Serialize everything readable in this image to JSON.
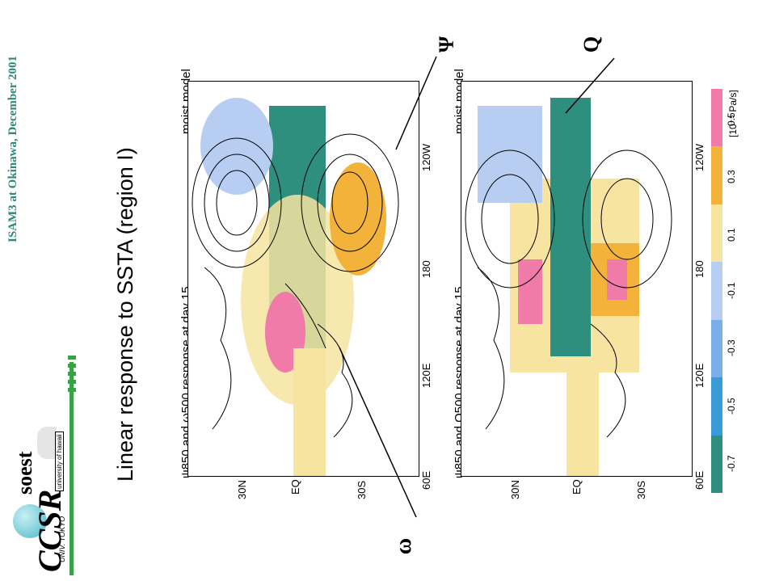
{
  "header": "ISAM3 at Okinawa, December 2001",
  "title": "Linear response to SSTA (region I)",
  "panel1": {
    "caption": "ψ850 and ω500 response at day 15",
    "model": "moist model",
    "callout": "ω"
  },
  "panel2": {
    "caption": "ψ850 and Q500 response at day 15",
    "model": "moist model",
    "callout": "Q"
  },
  "callout_top": "Ψ",
  "y_ticks": [
    "30N",
    "EQ",
    "30S"
  ],
  "x_ticks": [
    "60E",
    "120E",
    "180",
    "120W"
  ],
  "colorbar": {
    "labels": [
      "-0.7",
      "-0.5",
      "-0.3",
      "-0.1",
      "0.1",
      "0.3",
      "0.5"
    ],
    "unit": "[10⁻⁵ Pa/s]",
    "colors": [
      "#2f8f7f",
      "#3a9ad8",
      "#7aaee8",
      "#b7cdf2",
      "#f6e4a0",
      "#f3b23a",
      "#f07aa8"
    ]
  },
  "logos": {
    "ccsr": "CCSR",
    "ccsr_sub": "UNIV. TOKYO",
    "soest": "soest",
    "soest_sub": "university of hawaii"
  }
}
